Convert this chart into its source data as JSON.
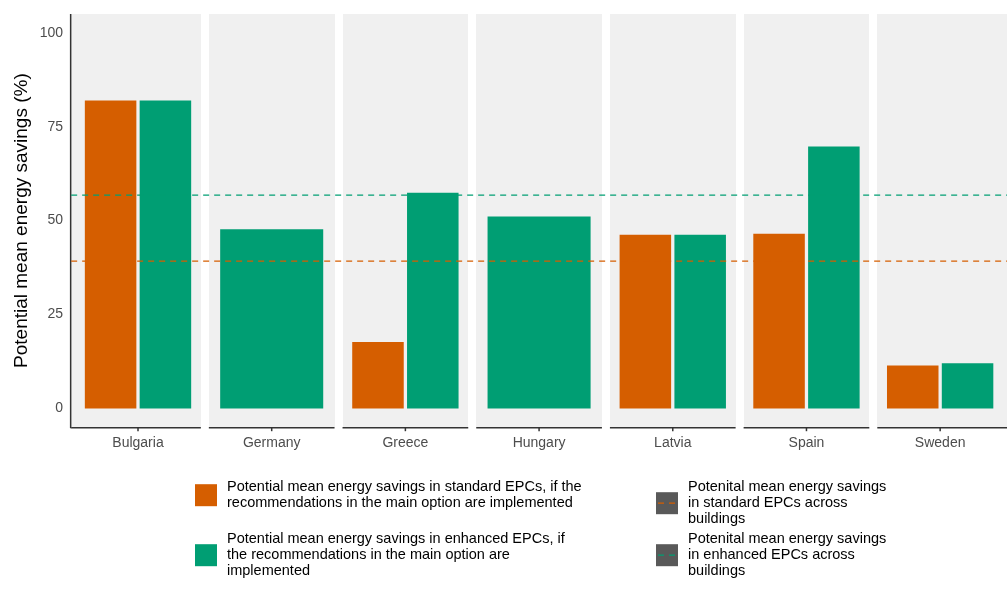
{
  "chart_data": {
    "type": "bar",
    "ylabel": "Potential mean energy savings (%)",
    "categories": [
      "Bulgaria",
      "Germany",
      "Greece",
      "Hungary",
      "Latvia",
      "Spain",
      "Sweden"
    ],
    "series": [
      {
        "name": "Potential mean energy savings in standard EPCs, if the recommendations in the main option are implemented",
        "color": "#d55e00",
        "values": [
          82,
          null,
          17.7,
          null,
          46.2,
          46.5,
          11.4
        ]
      },
      {
        "name": "Potential mean energy savings in enhanced EPCs, if the recommendations in the main option are implemented",
        "color": "#009e73",
        "values": [
          82,
          47.7,
          57.4,
          51.1,
          46.2,
          69.7,
          12
        ]
      }
    ],
    "ylim": [
      -5,
      105
    ],
    "yticks": [
      0,
      25,
      50,
      75,
      100
    ],
    "grid": false,
    "legend": "bottom",
    "ref_lines": [
      {
        "axis": "y",
        "value": 39.2,
        "label": "Potenital mean energy savings in standard EPCs across buildings",
        "color": "#d55e00",
        "line_style": "dashed"
      },
      {
        "axis": "y",
        "value": 56.8,
        "label": "Potenital mean energy savings in enhanced EPCs across buildings",
        "color": "#009e73",
        "line_style": "dashed"
      }
    ]
  }
}
